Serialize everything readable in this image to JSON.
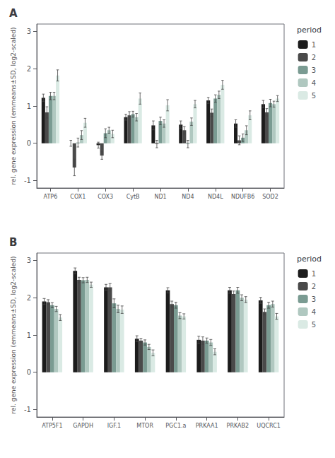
{
  "chart_data": [
    {
      "type": "bar",
      "title": "A",
      "ylabel": "rel. gene expression (emmeans±SD, log2-scaled)",
      "legend_title": "period",
      "categories": [
        "ATP6",
        "COX1",
        "COX3",
        "CytB",
        "ND1",
        "ND4",
        "ND4L",
        "NDUFB6",
        "SOD2"
      ],
      "series": [
        {
          "name": "1",
          "color": "#1c1c1c",
          "values": [
            1.22,
            0.0,
            -0.05,
            0.7,
            0.48,
            0.5,
            1.15,
            0.53,
            1.05
          ],
          "errors": [
            0.1,
            0.08,
            0.08,
            0.08,
            0.12,
            0.1,
            0.08,
            0.1,
            0.1
          ]
        },
        {
          "name": "2",
          "color": "#4a4a4a",
          "values": [
            0.83,
            -0.65,
            -0.33,
            0.75,
            -0.02,
            0.35,
            0.82,
            0.08,
            0.83
          ],
          "errors": [
            0.15,
            0.22,
            0.1,
            0.1,
            0.1,
            0.1,
            0.1,
            0.12,
            0.1
          ]
        },
        {
          "name": "3",
          "color": "#7a9b92",
          "values": [
            1.27,
            0.02,
            0.27,
            0.78,
            0.6,
            -0.02,
            1.2,
            0.15,
            1.08
          ],
          "errors": [
            0.1,
            0.12,
            0.12,
            0.08,
            0.1,
            0.1,
            0.1,
            0.1,
            0.1
          ]
        },
        {
          "name": "4",
          "color": "#b0c8c0",
          "values": [
            1.27,
            0.22,
            0.35,
            0.7,
            0.53,
            0.58,
            1.3,
            0.35,
            1.05
          ],
          "errors": [
            0.1,
            0.12,
            0.08,
            0.1,
            0.1,
            0.1,
            0.1,
            0.12,
            0.08
          ]
        },
        {
          "name": "5",
          "color": "#daeae4",
          "values": [
            1.82,
            0.55,
            0.25,
            1.2,
            1.02,
            1.05,
            1.57,
            0.75,
            1.2
          ],
          "errors": [
            0.15,
            0.12,
            0.1,
            0.15,
            0.15,
            0.1,
            0.12,
            0.12,
            0.08
          ]
        }
      ],
      "error_color": "#444444",
      "ylim": [
        -1.2,
        3.2
      ],
      "yticks": [
        -1,
        0,
        1,
        2,
        3
      ],
      "grid": false
    },
    {
      "type": "bar",
      "title": "B",
      "ylabel": "rel. gene expression (emmeans±SD, log2-scaled)",
      "legend_title": "period",
      "categories": [
        "ATP5F1",
        "GAPDH",
        "IGF.1",
        "MTOR",
        "PGC1.a",
        "PRKAA1",
        "PRKAB2",
        "UQCRC1"
      ],
      "series": [
        {
          "name": "1",
          "color": "#1c1c1c",
          "values": [
            1.9,
            2.72,
            2.28,
            0.9,
            2.2,
            0.87,
            2.2,
            1.93
          ],
          "errors": [
            0.08,
            0.08,
            0.08,
            0.08,
            0.07,
            0.1,
            0.08,
            0.08
          ]
        },
        {
          "name": "2",
          "color": "#4a4a4a",
          "values": [
            1.88,
            2.48,
            2.28,
            0.85,
            1.83,
            0.85,
            2.1,
            1.62
          ],
          "errors": [
            0.07,
            0.07,
            0.1,
            0.06,
            0.08,
            0.1,
            0.08,
            0.08
          ]
        },
        {
          "name": "3",
          "color": "#7a9b92",
          "values": [
            1.8,
            2.47,
            1.85,
            0.8,
            1.8,
            0.85,
            2.2,
            1.8
          ],
          "errors": [
            0.07,
            0.07,
            0.12,
            0.07,
            0.08,
            0.07,
            0.08,
            0.08
          ]
        },
        {
          "name": "4",
          "color": "#b0c8c0",
          "values": [
            1.7,
            2.48,
            1.7,
            0.68,
            1.52,
            0.8,
            2.0,
            1.83
          ],
          "errors": [
            0.07,
            0.07,
            0.1,
            0.07,
            0.08,
            0.08,
            0.08,
            0.08
          ]
        },
        {
          "name": "5",
          "color": "#daeae4",
          "values": [
            1.47,
            2.35,
            1.68,
            0.52,
            1.5,
            0.55,
            1.95,
            1.5
          ],
          "errors": [
            0.08,
            0.07,
            0.1,
            0.08,
            0.07,
            0.08,
            0.08,
            0.08
          ]
        }
      ],
      "error_color": "#444444",
      "ylim": [
        -1.2,
        3.2
      ],
      "yticks": [
        -1,
        0,
        1,
        2,
        3
      ],
      "grid": false
    }
  ]
}
